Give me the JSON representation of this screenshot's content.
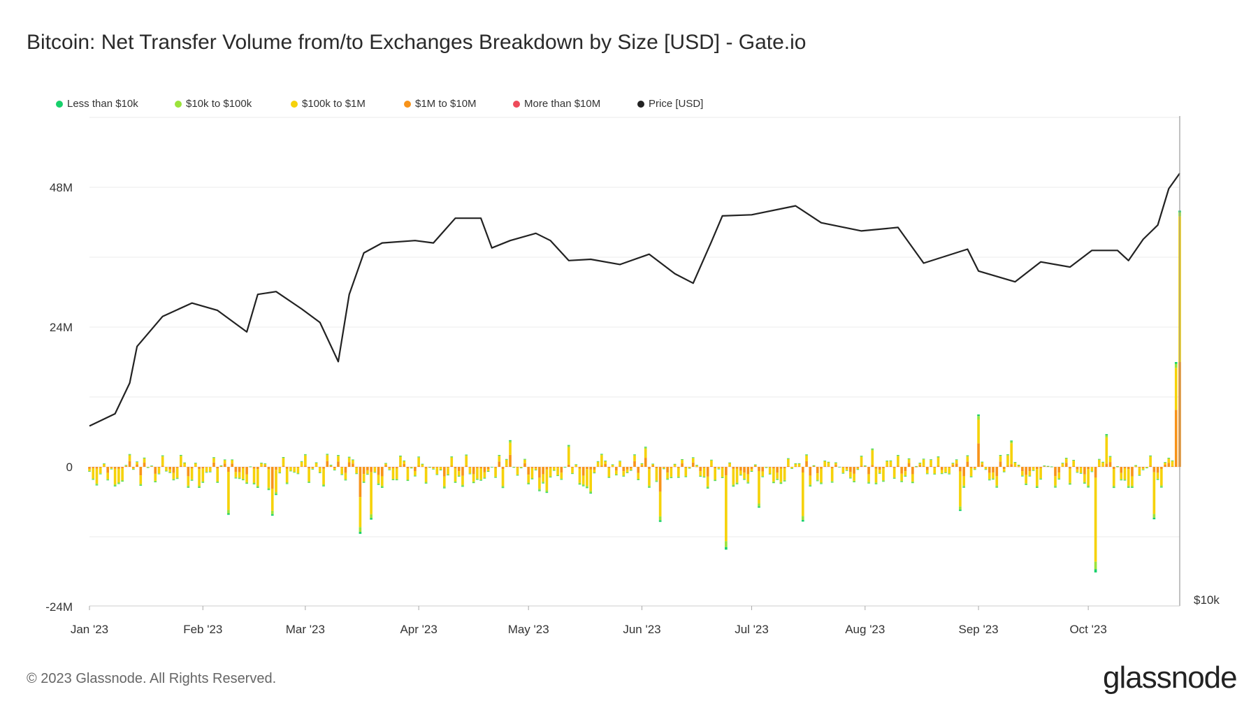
{
  "title": "Bitcoin: Net Transfer Volume from/to Exchanges Breakdown by Size [USD] - Gate.io",
  "footer": "© 2023 Glassnode. All Rights Reserved.",
  "brand": "glassnode",
  "legend": [
    {
      "label": "Less than $10k",
      "color": "#17d06b"
    },
    {
      "label": "$10k to $100k",
      "color": "#9be33b"
    },
    {
      "label": "$100k to $1M",
      "color": "#f6d20a"
    },
    {
      "label": "$1M to $10M",
      "color": "#f7931a"
    },
    {
      "label": "More than $10M",
      "color": "#ee4b5a"
    },
    {
      "label": "Price [USD]",
      "color": "#222222"
    }
  ],
  "chart_data": {
    "type": "bar",
    "title": "Bitcoin: Net Transfer Volume from/to Exchanges Breakdown by Size [USD] - Gate.io",
    "y_left": {
      "ticks": [
        "48M",
        "24M",
        "0",
        "-24M"
      ],
      "tick_values": [
        48000000,
        24000000,
        0,
        -24000000
      ],
      "range": [
        -24000000,
        48000000
      ]
    },
    "y_right": {
      "ticks": [
        "$10k"
      ],
      "scale": "log"
    },
    "x_ticks": [
      "Jan '23",
      "Feb '23",
      "Mar '23",
      "Apr '23",
      "May '23",
      "Jun '23",
      "Jul '23",
      "Aug '23",
      "Sep '23",
      "Oct '23"
    ],
    "x_range": [
      "2023-01-01",
      "2023-10-26"
    ],
    "grid": true,
    "legend_position": "top-left",
    "series_order": [
      "Less than $10k",
      "$10k to $100k",
      "$100k to $1M",
      "$1M to $10M",
      "More than $10M"
    ],
    "notable_bars": [
      {
        "date": "2023-10-25",
        "total": 18000000,
        "breakdown": {
          "$1M to $10M": 9800000,
          "$100k to $1M": 7200000,
          "$10k to $100k": 700000,
          "Less than $10k": 300000
        }
      },
      {
        "date": "2023-10-26",
        "total": 44000000,
        "breakdown": {
          "$1M to $10M": 18000000,
          "$100k to $1M": 25000000,
          "$10k to $100k": 700000,
          "Less than $10k": 300000
        }
      },
      {
        "date": "2023-06-24",
        "total": -14500000
      },
      {
        "date": "2023-10-03",
        "total": -18500000
      },
      {
        "date": "2023-03-16",
        "total": -11500000
      },
      {
        "date": "2023-09-01",
        "total": 9000000
      }
    ],
    "price_series": [
      [
        "2023-01-01",
        16600
      ],
      [
        "2023-01-08",
        17200
      ],
      [
        "2023-01-12",
        18800
      ],
      [
        "2023-01-14",
        20900
      ],
      [
        "2023-01-21",
        22800
      ],
      [
        "2023-01-29",
        23700
      ],
      [
        "2023-02-05",
        23200
      ],
      [
        "2023-02-13",
        21800
      ],
      [
        "2023-02-16",
        24300
      ],
      [
        "2023-02-21",
        24500
      ],
      [
        "2023-02-28",
        23300
      ],
      [
        "2023-03-05",
        22400
      ],
      [
        "2023-03-10",
        20000
      ],
      [
        "2023-03-13",
        24300
      ],
      [
        "2023-03-17",
        27400
      ],
      [
        "2023-03-22",
        28200
      ],
      [
        "2023-03-31",
        28400
      ],
      [
        "2023-04-05",
        28200
      ],
      [
        "2023-04-11",
        30300
      ],
      [
        "2023-04-18",
        30300
      ],
      [
        "2023-04-21",
        27800
      ],
      [
        "2023-04-26",
        28400
      ],
      [
        "2023-05-03",
        29000
      ],
      [
        "2023-05-07",
        28400
      ],
      [
        "2023-05-12",
        26800
      ],
      [
        "2023-05-18",
        26900
      ],
      [
        "2023-05-26",
        26500
      ],
      [
        "2023-06-03",
        27300
      ],
      [
        "2023-06-10",
        25800
      ],
      [
        "2023-06-15",
        25100
      ],
      [
        "2023-06-20",
        28300
      ],
      [
        "2023-06-23",
        30500
      ],
      [
        "2023-07-01",
        30600
      ],
      [
        "2023-07-13",
        31400
      ],
      [
        "2023-07-20",
        29900
      ],
      [
        "2023-07-31",
        29200
      ],
      [
        "2023-08-10",
        29500
      ],
      [
        "2023-08-17",
        26600
      ],
      [
        "2023-08-29",
        27700
      ],
      [
        "2023-09-01",
        26000
      ],
      [
        "2023-09-11",
        25200
      ],
      [
        "2023-09-18",
        26700
      ],
      [
        "2023-09-26",
        26300
      ],
      [
        "2023-10-02",
        27600
      ],
      [
        "2023-10-09",
        27600
      ],
      [
        "2023-10-12",
        26800
      ],
      [
        "2023-10-16",
        28500
      ],
      [
        "2023-10-20",
        29700
      ],
      [
        "2023-10-23",
        33000
      ],
      [
        "2023-10-26",
        34500
      ]
    ]
  }
}
